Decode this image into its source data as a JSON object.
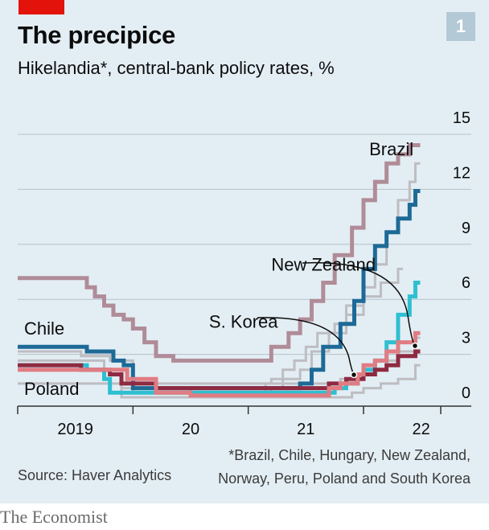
{
  "header": {
    "title": "The precipice",
    "subtitle": "Hikelandia*, central-bank policy rates, %",
    "chart_number": "1"
  },
  "footer": {
    "footnote_line1": "*Brazil, Chile, Hungary, New Zealand,",
    "footnote_line2": "Norway, Peru, Poland and South Korea",
    "source": "Source: Haver Analytics",
    "brand": "The Economist"
  },
  "colors": {
    "background": "#e3eef4",
    "brazil": "#b08c98",
    "chile": "#1d6a97",
    "new_zealand": "#2fbfd1",
    "s_korea": "#8e2a41",
    "poland": "#e07c82",
    "other": "#bdbdc2",
    "gridline": "#b4c1c9",
    "accent_red": "#e3120b"
  },
  "chart_data": {
    "type": "line",
    "title": "The precipice",
    "subtitle": "Hikelandia*, central-bank policy rates, %",
    "x_tick_labels": [
      "2019",
      "20",
      "21",
      "22"
    ],
    "y_ticks": [
      0,
      3,
      6,
      9,
      12,
      15
    ],
    "xlim": [
      2019.0,
      2022.67
    ],
    "ylim": [
      0,
      15
    ],
    "grid": true,
    "y_axis_side": "right",
    "annotations": [
      {
        "label": "Brazil",
        "x": 2022.05,
        "y": 13.2
      },
      {
        "label": "New Zealand",
        "x": 2021.2,
        "y": 6.9
      },
      {
        "label": "S. Korea",
        "x": 2020.66,
        "y": 3.8
      }
    ],
    "series_labels_left": [
      {
        "label": "Chile",
        "y": 3.3
      },
      {
        "label": "Poland",
        "y": 0.0
      }
    ],
    "series": [
      {
        "name": "Other",
        "step": true,
        "x": [
          2019.0,
          2019.15,
          2019.35,
          2019.6,
          2019.75,
          2019.9,
          2020.0,
          2020.1,
          2020.3,
          2020.6,
          2021.0,
          2021.15,
          2021.2,
          2021.3,
          2021.4,
          2021.5,
          2021.6,
          2021.75,
          2021.85,
          2022.0,
          2022.1,
          2022.2,
          2022.3,
          2022.4,
          2022.45
        ],
        "y": [
          2.0,
          2.0,
          2.0,
          2.0,
          1.5,
          0.5,
          0.25,
          0.25,
          0.25,
          0.25,
          0.25,
          0.75,
          1.0,
          1.5,
          2.0,
          2.75,
          3.5,
          4.0,
          5.0,
          6.0,
          7.25,
          9.0,
          10.75,
          11.75,
          12.75
        ]
      },
      {
        "name": "Other",
        "step": true,
        "x": [
          2019.0,
          2019.3,
          2019.55,
          2019.8,
          2020.0,
          2020.2,
          2020.5,
          2021.0,
          2021.2,
          2021.3,
          2021.45,
          2021.55,
          2021.7,
          2021.85,
          2022.0,
          2022.15,
          2022.3
        ],
        "y": [
          2.5,
          2.5,
          2.25,
          2.0,
          1.0,
          0.5,
          0.25,
          0.25,
          0.5,
          1.0,
          1.5,
          2.5,
          3.5,
          4.5,
          5.5,
          6.25,
          7.0
        ]
      },
      {
        "name": "Other",
        "step": true,
        "x": [
          2019.0,
          2019.4,
          2019.75,
          2019.95,
          2021.0,
          2021.2,
          2021.35,
          2021.5,
          2021.65,
          2021.8,
          2021.95,
          2022.1,
          2022.2,
          2022.3,
          2022.45
        ],
        "y": [
          1.5,
          1.5,
          1.5,
          0.75,
          0.75,
          0.75,
          0.75,
          0.75,
          0.75,
          1.0,
          1.25,
          1.5,
          2.0,
          2.5,
          3.25
        ]
      },
      {
        "name": "Other",
        "step": true,
        "x": [
          2019.0,
          2019.3,
          2019.6,
          2019.9,
          2020.5,
          2021.0,
          2021.3,
          2021.5,
          2021.7,
          2021.9,
          2022.0,
          2022.15,
          2022.3,
          2022.45
        ],
        "y": [
          0.75,
          0.75,
          0.75,
          0.0,
          0.0,
          0.0,
          0.0,
          0.0,
          0.0,
          0.25,
          0.5,
          0.75,
          1.0,
          1.75
        ]
      },
      {
        "name": "Brazil",
        "step": true,
        "x": [
          2019.0,
          2019.4,
          2019.6,
          2019.67,
          2019.75,
          2019.83,
          2019.92,
          2020.0,
          2020.1,
          2020.2,
          2020.35,
          2020.45,
          2020.55,
          2020.65,
          2021.0,
          2021.2,
          2021.35,
          2021.45,
          2021.55,
          2021.65,
          2021.75,
          2021.9,
          2022.0,
          2022.1,
          2022.2,
          2022.3,
          2022.4,
          2022.45
        ],
        "y": [
          6.5,
          6.5,
          6.0,
          5.5,
          5.0,
          4.5,
          4.25,
          3.75,
          3.0,
          2.25,
          2.0,
          2.0,
          2.0,
          2.0,
          2.0,
          2.75,
          3.5,
          4.25,
          5.25,
          6.25,
          7.75,
          9.25,
          10.75,
          11.75,
          12.75,
          13.25,
          13.75,
          13.75
        ]
      },
      {
        "name": "Chile",
        "step": true,
        "x": [
          2019.0,
          2019.42,
          2019.6,
          2019.83,
          2019.92,
          2020.0,
          2020.3,
          2020.6,
          2021.0,
          2021.3,
          2021.45,
          2021.55,
          2021.65,
          2021.8,
          2021.92,
          2022.0,
          2022.1,
          2022.2,
          2022.3,
          2022.4,
          2022.45
        ],
        "y": [
          2.75,
          2.75,
          2.5,
          2.0,
          1.75,
          0.5,
          0.5,
          0.5,
          0.5,
          0.5,
          0.75,
          1.5,
          2.75,
          4.0,
          5.25,
          7.0,
          8.25,
          9.0,
          9.75,
          10.5,
          11.25
        ]
      },
      {
        "name": "New Zealand",
        "step": true,
        "x": [
          2019.0,
          2019.35,
          2019.6,
          2019.75,
          2019.8,
          2020.0,
          2020.2,
          2020.6,
          2021.0,
          2021.5,
          2021.75,
          2021.85,
          2021.95,
          2022.0,
          2022.1,
          2022.2,
          2022.3,
          2022.4,
          2022.45
        ],
        "y": [
          1.75,
          1.75,
          1.5,
          1.0,
          0.25,
          0.25,
          0.25,
          0.25,
          0.25,
          0.25,
          0.5,
          0.75,
          1.25,
          1.5,
          2.0,
          3.0,
          4.5,
          5.5,
          6.25
        ]
      },
      {
        "name": "S. Korea",
        "step": true,
        "x": [
          2019.0,
          2019.3,
          2019.55,
          2019.8,
          2019.9,
          2020.2,
          2020.6,
          2021.0,
          2021.55,
          2021.7,
          2021.85,
          2022.0,
          2022.1,
          2022.2,
          2022.3,
          2022.45
        ],
        "y": [
          1.75,
          1.75,
          1.5,
          1.25,
          0.75,
          0.5,
          0.5,
          0.5,
          0.5,
          0.75,
          1.0,
          1.25,
          1.5,
          1.75,
          2.25,
          2.5
        ]
      },
      {
        "name": "Poland",
        "step": true,
        "x": [
          2019.0,
          2019.35,
          2019.7,
          2019.95,
          2020.2,
          2020.5,
          2021.0,
          2021.3,
          2021.5,
          2021.7,
          2021.8,
          2021.95,
          2022.0,
          2022.1,
          2022.2,
          2022.3,
          2022.45
        ],
        "y": [
          1.5,
          1.5,
          1.5,
          1.0,
          0.25,
          0.1,
          0.1,
          0.1,
          0.1,
          0.5,
          0.75,
          1.25,
          1.75,
          2.0,
          2.5,
          3.0,
          3.5
        ]
      }
    ]
  }
}
